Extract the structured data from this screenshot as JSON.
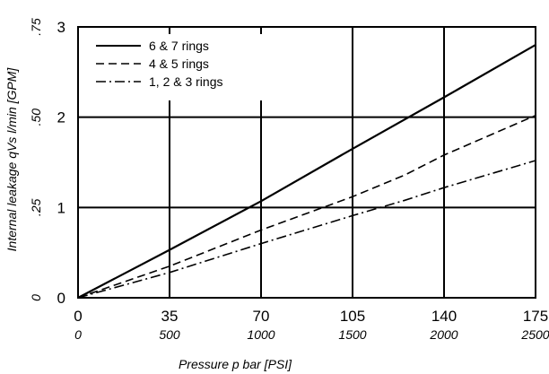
{
  "chart_data": {
    "type": "line",
    "xlabel": "Pressure p bar [PSI]",
    "ylabel": "Internal leakage qVs l/min [GPM]",
    "x_ticks": [
      "0",
      "35",
      "70",
      "105",
      "140",
      "175"
    ],
    "x_ticks_secondary": [
      "0",
      "500",
      "1000",
      "1500",
      "2000",
      "2500"
    ],
    "y_ticks": [
      "0",
      "1",
      "2",
      "3"
    ],
    "y_ticks_secondary": [
      "0",
      ".25",
      ".50",
      ".75"
    ],
    "xlim": [
      0,
      175
    ],
    "ylim": [
      0,
      3
    ],
    "grid": true,
    "legend_position": "top-left",
    "series": [
      {
        "name": "6 & 7 rings",
        "style": "solid",
        "points": [
          [
            0,
            0
          ],
          [
            35,
            0.53
          ],
          [
            70,
            1.07
          ],
          [
            105,
            1.65
          ],
          [
            140,
            2.22
          ],
          [
            175,
            2.8
          ]
        ]
      },
      {
        "name": "4 & 5 rings",
        "style": "dashed",
        "points": [
          [
            0,
            0
          ],
          [
            35,
            0.35
          ],
          [
            70,
            0.75
          ],
          [
            105,
            1.12
          ],
          [
            125,
            1.36
          ],
          [
            140,
            1.58
          ],
          [
            175,
            2.02
          ]
        ]
      },
      {
        "name": "1, 2 & 3 rings",
        "style": "dash-dot",
        "points": [
          [
            0,
            0
          ],
          [
            35,
            0.28
          ],
          [
            70,
            0.6
          ],
          [
            105,
            0.91
          ],
          [
            125,
            1.08
          ],
          [
            140,
            1.22
          ],
          [
            175,
            1.52
          ]
        ]
      }
    ]
  }
}
